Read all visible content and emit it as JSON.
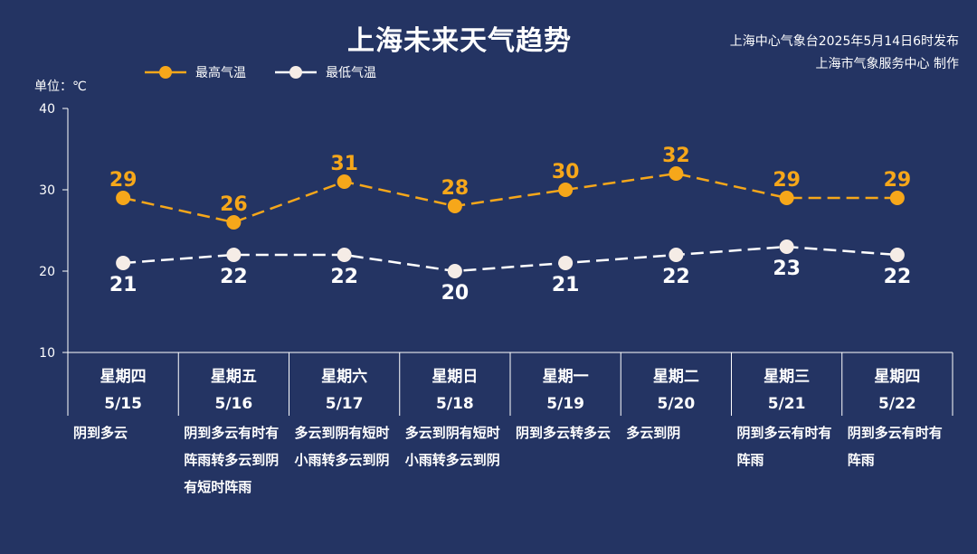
{
  "header": {
    "title": "上海未来天气趋势",
    "publisher_line1": "上海中心气象台2025年5月14日6时发布",
    "publisher_line2": "上海市气象服务中心 制作",
    "unit": "单位：℃"
  },
  "colors": {
    "background": "#243463",
    "high": "#f6a71a",
    "low": "#ffffff",
    "axis": "#ffffff"
  },
  "chart_data": {
    "type": "line",
    "title": "上海未来天气趋势",
    "ylabel": "单位：℃",
    "ylim": [
      10,
      40
    ],
    "yticks": [
      10,
      20,
      30,
      40
    ],
    "grid": false,
    "legend_position": "top-left",
    "categories": [
      "星期四",
      "星期五",
      "星期六",
      "星期日",
      "星期一",
      "星期二",
      "星期三",
      "星期四"
    ],
    "dates": [
      "5/15",
      "5/16",
      "5/17",
      "5/18",
      "5/19",
      "5/20",
      "5/21",
      "5/22"
    ],
    "series": [
      {
        "name": "最高气温",
        "line_style": "dashed",
        "values": [
          29,
          26,
          31,
          28,
          30,
          32,
          29,
          29
        ]
      },
      {
        "name": "最低气温",
        "line_style": "dashed",
        "values": [
          21,
          22,
          22,
          20,
          21,
          22,
          23,
          22
        ]
      }
    ],
    "weather": [
      "阴到多云",
      "阴到多云有时有阵雨转多云到阴有短时阵雨",
      "多云到阴有短时小雨转多云到阴",
      "多云到阴有短时小雨转多云到阴",
      "阴到多云转多云",
      "多云到阴",
      "阴到多云有时有阵雨",
      "阴到多云有时有阵雨"
    ]
  }
}
